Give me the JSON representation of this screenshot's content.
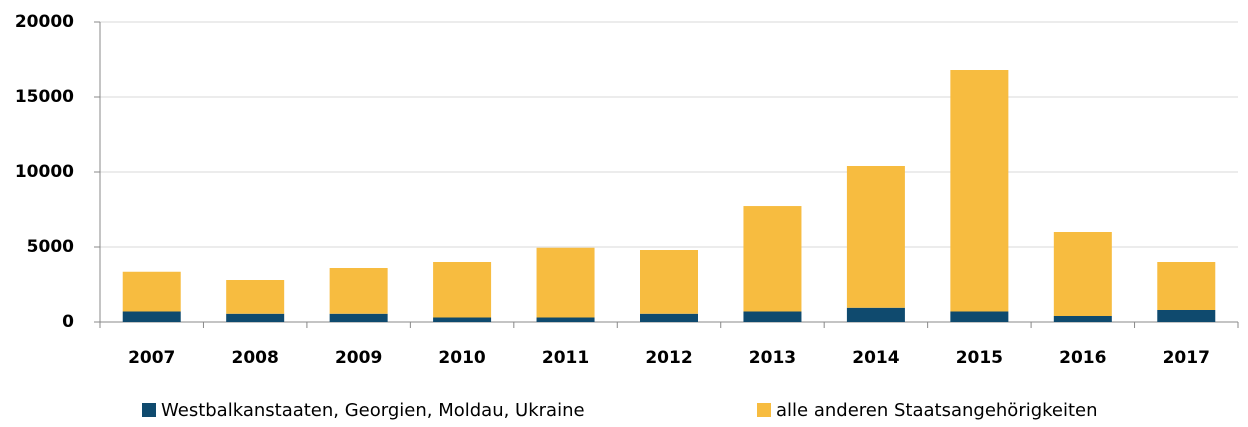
{
  "chart_data": {
    "type": "stacked_bar",
    "categories": [
      "2007",
      "2008",
      "2009",
      "2010",
      "2011",
      "2012",
      "2013",
      "2014",
      "2015",
      "2016",
      "2017"
    ],
    "series": [
      {
        "name": "Westbalkanstaaten, Georgien, Moldau, Ukraine",
        "color": "#0f4a6e",
        "values": [
          700,
          550,
          550,
          300,
          300,
          550,
          700,
          950,
          700,
          400,
          800
        ]
      },
      {
        "name": "alle anderen Staatsangehörigkeiten",
        "color": "#f7bc40",
        "values": [
          2650,
          2250,
          3050,
          3700,
          4650,
          4250,
          7030,
          9450,
          16100,
          5600,
          3200
        ]
      }
    ],
    "ylim": [
      0,
      20000
    ],
    "yticks": [
      0,
      5000,
      10000,
      15000,
      20000
    ],
    "grid": true
  }
}
